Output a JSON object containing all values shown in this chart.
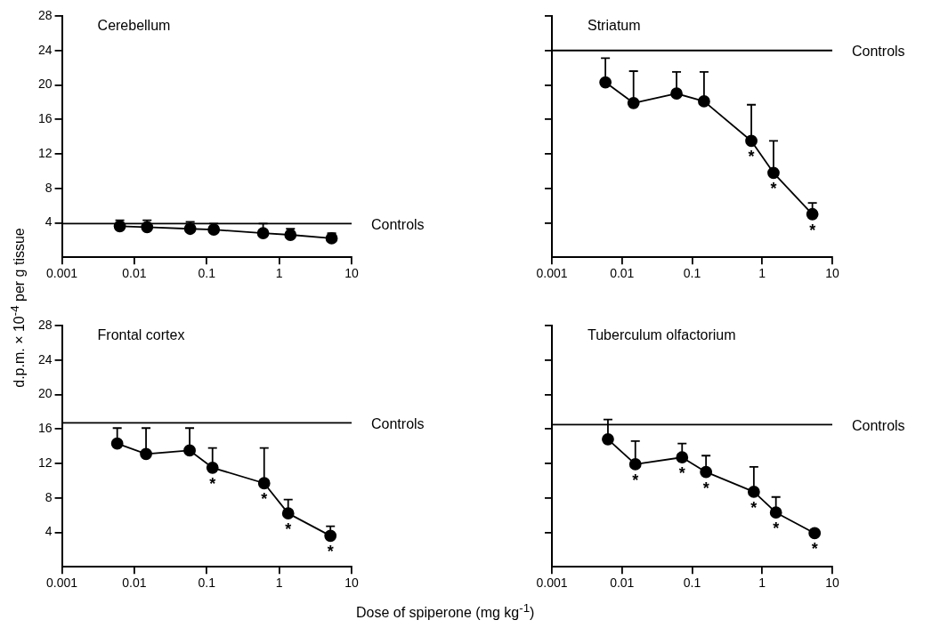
{
  "chart_data": [
    {
      "type": "line",
      "title": "Cerebellum",
      "ylabel": "d.p.m. × 10$^{-4}$ per g tissue",
      "log": "x",
      "marker": "circle",
      "line_style": "solid",
      "xlim": [
        0.001,
        10
      ],
      "xticks": [
        0.001,
        0.01,
        0.1,
        1,
        10
      ],
      "ylim": [
        0,
        28
      ],
      "yticks": [
        4,
        8,
        12,
        16,
        20,
        24,
        28
      ],
      "x": [
        0.0063,
        0.015,
        0.059,
        0.125,
        0.6,
        1.43,
        5.3
      ],
      "series": [
        {
          "color": "#000000",
          "values": [
            3.6,
            3.5,
            3.3,
            3.2,
            2.8,
            2.6,
            2.2
          ],
          "errors": [
            [
              3.6,
              4.3
            ],
            [
              3.5,
              4.3
            ],
            [
              3.3,
              4.1
            ],
            [
              3.2,
              3.9
            ],
            [
              2.8,
              3.9
            ],
            [
              2.6,
              3.3
            ],
            [
              2.2,
              2.8
            ]
          ]
        }
      ],
      "ref_lines": [
        {
          "axis": "y",
          "value": 3.9,
          "label": "Controls",
          "color": "#000000"
        }
      ]
    },
    {
      "type": "line",
      "title": "Striatum",
      "log": "x",
      "marker": "circle",
      "line_style": "solid",
      "tick_labels": "x",
      "xlim": [
        0.001,
        10
      ],
      "xticks": [
        0.001,
        0.01,
        0.1,
        1,
        10
      ],
      "ylim": [
        0,
        28
      ],
      "yticks": [
        4,
        8,
        12,
        16,
        20,
        24,
        28
      ],
      "x": [
        0.0058,
        0.0146,
        0.06,
        0.148,
        0.7,
        1.45,
        5.2
      ],
      "series": [
        {
          "color": "#000000",
          "values": [
            20.3,
            17.9,
            19,
            18.1,
            13.5,
            9.8,
            5
          ],
          "errors": [
            [
              20.3,
              23.1
            ],
            [
              17.9,
              21.6
            ],
            [
              19,
              21.5
            ],
            [
              18.1,
              21.5
            ],
            [
              13.5,
              17.7
            ],
            [
              9.8,
              13.5
            ],
            [
              5,
              6.3
            ]
          ]
        }
      ],
      "ref_lines": [
        {
          "axis": "y",
          "value": 24,
          "label": "Controls",
          "color": "#000000"
        }
      ],
      "annotations": [
        {
          "text": "*",
          "x": 0.7,
          "y": 13.5
        },
        {
          "text": "*",
          "x": 1.45,
          "y": 9.8
        },
        {
          "text": "*",
          "x": 5.2,
          "y": 5
        }
      ]
    },
    {
      "type": "line",
      "title": "Frontal cortex",
      "xlabel": "Dose of spiperone (mg kg$^{-1}$)",
      "log": "x",
      "marker": "circle",
      "line_style": "solid",
      "xlim": [
        0.001,
        10
      ],
      "xticks": [
        0.001,
        0.01,
        0.1,
        1,
        10
      ],
      "ylim": [
        0,
        28
      ],
      "yticks": [
        4,
        8,
        12,
        16,
        20,
        24,
        28
      ],
      "x": [
        0.0058,
        0.0145,
        0.058,
        0.12,
        0.62,
        1.33,
        5.1
      ],
      "series": [
        {
          "color": "#000000",
          "values": [
            14.3,
            13.1,
            13.5,
            11.5,
            9.7,
            6.2,
            3.6
          ],
          "errors": [
            [
              14.3,
              16.1
            ],
            [
              13.1,
              16.1
            ],
            [
              13.5,
              16.1
            ],
            [
              11.5,
              13.8
            ],
            [
              9.7,
              13.8
            ],
            [
              6.2,
              7.8
            ],
            [
              3.6,
              4.7
            ]
          ]
        }
      ],
      "ref_lines": [
        {
          "axis": "y",
          "value": 16.7,
          "label": "Controls",
          "color": "#000000"
        }
      ],
      "annotations": [
        {
          "text": "*",
          "x": 0.12,
          "y": 11.5
        },
        {
          "text": "*",
          "x": 0.62,
          "y": 9.7
        },
        {
          "text": "*",
          "x": 1.33,
          "y": 6.2
        },
        {
          "text": "*",
          "x": 5.1,
          "y": 3.6
        }
      ]
    },
    {
      "type": "line",
      "title": "Tuberculum olfactorium",
      "log": "x",
      "marker": "circle",
      "line_style": "solid",
      "tick_labels": "x",
      "xlim": [
        0.001,
        10
      ],
      "xticks": [
        0.001,
        0.01,
        0.1,
        1,
        10
      ],
      "ylim": [
        0,
        28
      ],
      "yticks": [
        4,
        8,
        12,
        16,
        20,
        24,
        28
      ],
      "x": [
        0.0063,
        0.0155,
        0.072,
        0.158,
        0.76,
        1.57,
        5.6
      ],
      "series": [
        {
          "color": "#000000",
          "values": [
            14.8,
            11.9,
            12.7,
            11,
            8.7,
            6.3,
            3.9
          ],
          "errors": [
            [
              14.8,
              17.1
            ],
            [
              11.9,
              14.6
            ],
            [
              12.7,
              14.3
            ],
            [
              11,
              12.9
            ],
            [
              8.7,
              11.6
            ],
            [
              6.3,
              8.1
            ],
            [
              3.9,
              4.3
            ]
          ]
        }
      ],
      "ref_lines": [
        {
          "axis": "y",
          "value": 16.5,
          "label": "Controls",
          "color": "#000000"
        }
      ],
      "annotations": [
        {
          "text": "*",
          "x": 0.0155,
          "y": 11.9
        },
        {
          "text": "*",
          "x": 0.072,
          "y": 12.7
        },
        {
          "text": "*",
          "x": 0.158,
          "y": 11
        },
        {
          "text": "*",
          "x": 0.76,
          "y": 8.7
        },
        {
          "text": "*",
          "x": 1.57,
          "y": 6.3
        },
        {
          "text": "*",
          "x": 5.6,
          "y": 3.9
        }
      ]
    }
  ]
}
